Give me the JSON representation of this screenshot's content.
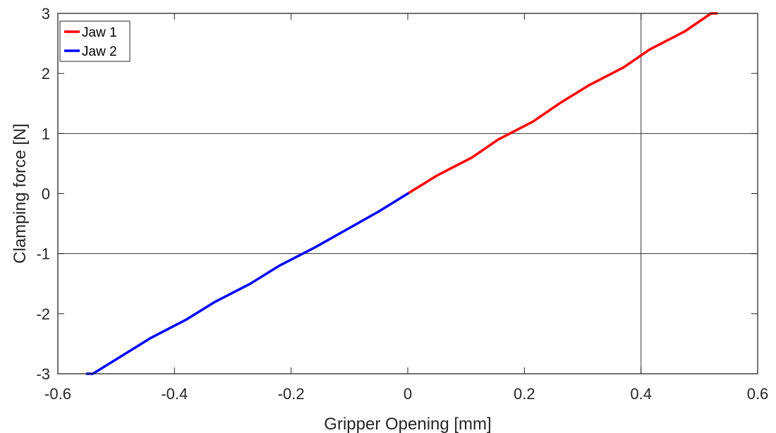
{
  "chart_data": {
    "type": "line",
    "title": "",
    "xlabel": "Gripper Opening [mm]",
    "ylabel": "Clamping force [N]",
    "xlim": [
      -0.6,
      0.6
    ],
    "ylim": [
      -3,
      3
    ],
    "xticks": [
      -0.6,
      -0.4,
      -0.2,
      0,
      0.2,
      0.4,
      0.6
    ],
    "yticks": [
      -3,
      -2,
      -1,
      0,
      1,
      2,
      3
    ],
    "xtick_labels": [
      "-0.6",
      "-0.4",
      "-0.2",
      "0",
      "0.2",
      "0.4",
      "0.6"
    ],
    "ytick_labels": [
      "-3",
      "-2",
      "-1",
      "0",
      "1",
      "2",
      "3"
    ],
    "grid": "partial",
    "grid_lines": {
      "x": [
        0.4
      ],
      "y": [
        1,
        -1
      ]
    },
    "legend_position": "top-left",
    "series": [
      {
        "name": "Jaw 1",
        "color": "#ff0000",
        "x": [
          0,
          0.05,
          0.11,
          0.155,
          0.215,
          0.26,
          0.31,
          0.37,
          0.415,
          0.475,
          0.52,
          0.53
        ],
        "y": [
          0,
          0.3,
          0.6,
          0.9,
          1.2,
          1.5,
          1.8,
          2.1,
          2.4,
          2.7,
          3.0,
          3.0
        ]
      },
      {
        "name": "Jaw 2",
        "color": "#0000ff",
        "x": [
          0,
          -0.05,
          -0.105,
          -0.16,
          -0.22,
          -0.27,
          -0.33,
          -0.38,
          -0.44,
          -0.49,
          -0.54,
          -0.55
        ],
        "y": [
          0,
          -0.3,
          -0.6,
          -0.9,
          -1.2,
          -1.5,
          -1.8,
          -2.1,
          -2.4,
          -2.7,
          -3.0,
          -3.0
        ]
      }
    ]
  }
}
